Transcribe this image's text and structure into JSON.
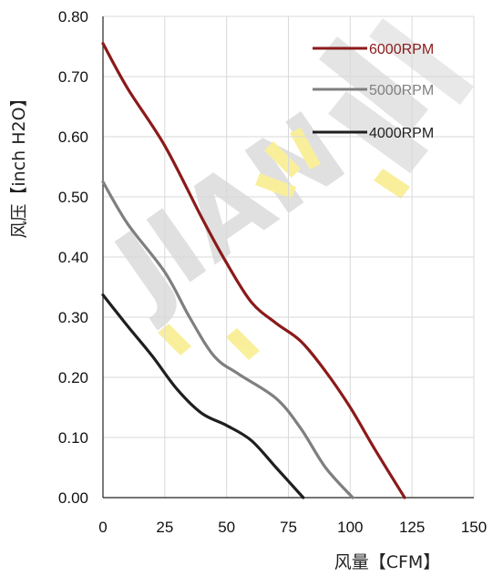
{
  "chart_data": {
    "type": "line",
    "title": "",
    "xlabel": "风量【CFM】",
    "ylabel": "风压【inch H2O】",
    "xlim": [
      0,
      150
    ],
    "ylim": [
      0,
      0.8
    ],
    "x_ticks": [
      "0",
      "25",
      "50",
      "75",
      "100",
      "125",
      "150"
    ],
    "y_ticks": [
      "0.00",
      "0.10",
      "0.20",
      "0.30",
      "0.40",
      "0.50",
      "0.60",
      "0.70",
      "0.80"
    ],
    "grid": true,
    "legend_position": "top-right",
    "series": [
      {
        "name": "6000RPM",
        "color": "#8b1a1a",
        "points": [
          [
            0,
            0.755
          ],
          [
            10,
            0.68
          ],
          [
            25,
            0.585
          ],
          [
            40,
            0.465
          ],
          [
            50,
            0.39
          ],
          [
            60,
            0.325
          ],
          [
            70,
            0.29
          ],
          [
            80,
            0.26
          ],
          [
            90,
            0.21
          ],
          [
            100,
            0.15
          ],
          [
            110,
            0.08
          ],
          [
            122,
            0.0
          ]
        ]
      },
      {
        "name": "5000RPM",
        "color": "#7f7f7f",
        "points": [
          [
            0,
            0.525
          ],
          [
            10,
            0.455
          ],
          [
            25,
            0.375
          ],
          [
            35,
            0.3
          ],
          [
            45,
            0.235
          ],
          [
            55,
            0.205
          ],
          [
            70,
            0.165
          ],
          [
            80,
            0.115
          ],
          [
            90,
            0.05
          ],
          [
            101,
            0.0
          ]
        ]
      },
      {
        "name": "4000RPM",
        "color": "#1f1f1f",
        "points": [
          [
            0,
            0.337
          ],
          [
            10,
            0.285
          ],
          [
            20,
            0.235
          ],
          [
            30,
            0.18
          ],
          [
            40,
            0.14
          ],
          [
            50,
            0.12
          ],
          [
            60,
            0.095
          ],
          [
            70,
            0.05
          ],
          [
            81,
            0.0
          ]
        ]
      }
    ]
  },
  "watermark": {
    "text": "JIAN",
    "colors": [
      "#c7c7c7",
      "#f2e24c"
    ]
  }
}
